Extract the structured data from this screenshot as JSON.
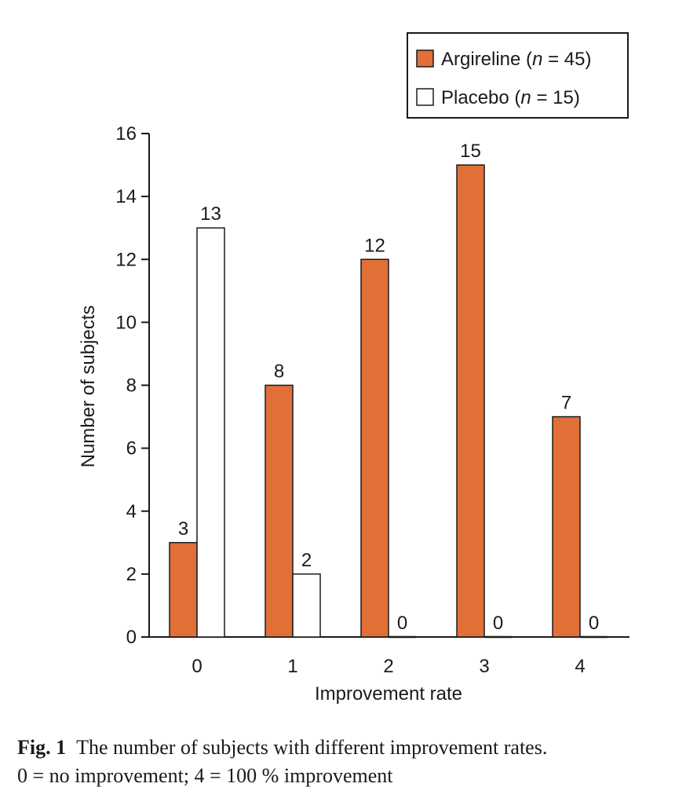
{
  "chart_data": {
    "type": "bar",
    "categories": [
      "0",
      "1",
      "2",
      "3",
      "4"
    ],
    "series": [
      {
        "name": "Argireline",
        "n_label": "n",
        "n_value": "= 45)",
        "values": [
          3,
          8,
          12,
          15,
          7
        ],
        "color": "#e07038"
      },
      {
        "name": "Placebo",
        "n_label": "n",
        "n_value": "= 15)",
        "values": [
          13,
          2,
          0,
          0,
          0
        ],
        "color": "#ffffff"
      }
    ],
    "xlabel": "Improvement rate",
    "ylabel": "Number of subjects",
    "ylim": [
      0,
      16
    ],
    "yticks": [
      0,
      2,
      4,
      6,
      8,
      10,
      12,
      14,
      16
    ],
    "legend_position": "top-right",
    "grid": false
  },
  "caption": {
    "label": "Fig. 1",
    "line1": "The number of subjects with different improvement rates.",
    "line2": "0 = no improvement; 4 = 100 % improvement"
  }
}
